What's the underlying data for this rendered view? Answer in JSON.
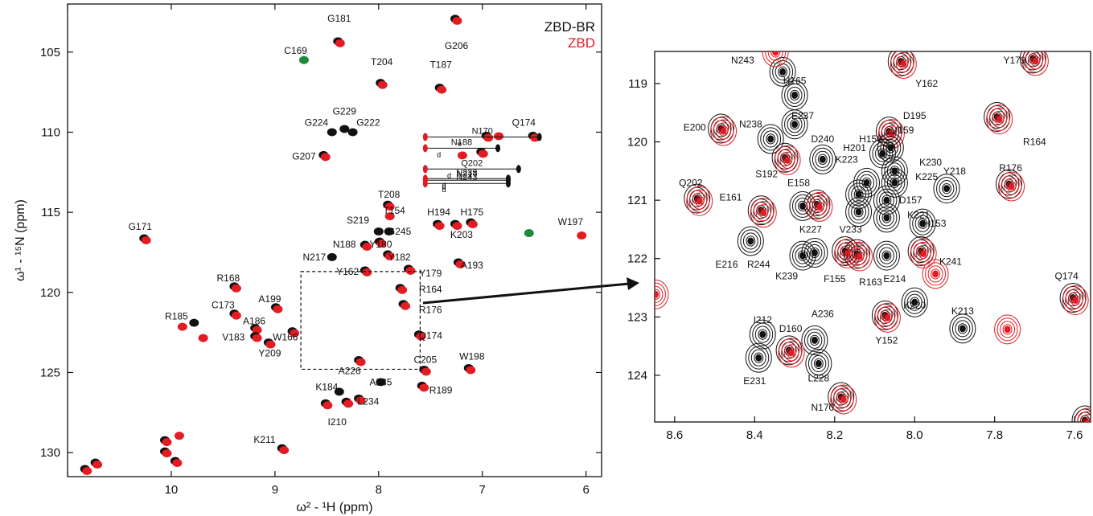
{
  "chart_data": [
    {
      "type": "scatter",
      "xlabel": "ω² - ¹H (ppm)",
      "ylabel": "ω¹ - ¹⁵N (ppm)",
      "x_reversed": true,
      "y_reversed": true,
      "xlim": [
        11.0,
        5.85
      ],
      "ylim": [
        102.0,
        131.5
      ],
      "xticks": [
        11,
        10,
        9,
        8,
        7,
        6
      ],
      "xtick_labels": [
        "",
        "10",
        "9",
        "8",
        "7",
        "6"
      ],
      "yticks": [
        105,
        110,
        115,
        120,
        125,
        130
      ],
      "ytick_labels": [
        "105",
        "110",
        "115",
        "120",
        "125",
        "130"
      ],
      "legend": [
        {
          "name": "ZBD-BR",
          "color": "#111111"
        },
        {
          "name": "ZBD",
          "color": "#e31b23"
        }
      ],
      "zoom_box": {
        "x": [
          8.75,
          7.6
        ],
        "y": [
          118.7,
          124.8
        ]
      },
      "colors": {
        "black": "#111111",
        "red": "#e31b23",
        "green": "#1d8a3c"
      },
      "peaks": [
        {
          "label": "G206",
          "x": 7.25,
          "y": 103.0,
          "series": "both",
          "lx": 7.25,
          "ly": 104.6
        },
        {
          "label": "G181",
          "x": 8.38,
          "y": 104.4,
          "series": "both",
          "lx": 8.38,
          "ly": 102.9
        },
        {
          "label": "C169",
          "x": 8.72,
          "y": 105.5,
          "series": "green",
          "lx": 8.8,
          "ly": 104.9
        },
        {
          "label": "T204",
          "x": 7.97,
          "y": 107.0,
          "series": "both",
          "lx": 7.97,
          "ly": 105.6
        },
        {
          "label": "T187",
          "x": 7.4,
          "y": 107.3,
          "series": "both",
          "lx": 7.4,
          "ly": 105.8
        },
        {
          "label": "G229",
          "x": 8.33,
          "y": 109.8,
          "series": "black",
          "lx": 8.33,
          "ly": 108.7
        },
        {
          "label": "G224",
          "x": 8.45,
          "y": 110.0,
          "series": "black",
          "lx": 8.6,
          "ly": 109.4
        },
        {
          "label": "G222",
          "x": 8.25,
          "y": 110.0,
          "series": "black",
          "lx": 8.1,
          "ly": 109.4
        },
        {
          "label": "G207",
          "x": 8.52,
          "y": 111.5,
          "series": "both",
          "lx": 8.72,
          "ly": 111.5
        },
        {
          "label": "Q174",
          "x": 6.5,
          "y": 110.3,
          "series": "both",
          "lx": 6.6,
          "ly": 109.4
        },
        {
          "label": "T208",
          "x": 7.9,
          "y": 114.6,
          "series": "both",
          "lx": 7.9,
          "ly": 113.9
        },
        {
          "label": "T154",
          "x": 7.9,
          "y": 115.2,
          "series": "red",
          "lx": 7.85,
          "ly": 114.9
        },
        {
          "label": "S219",
          "x": 8.0,
          "y": 116.2,
          "series": "black",
          "lx": 8.2,
          "ly": 115.5
        },
        {
          "label": "G245",
          "x": 7.9,
          "y": 116.2,
          "series": "black",
          "lx": 7.8,
          "ly": 116.2
        },
        {
          "label": "H194",
          "x": 7.42,
          "y": 115.8,
          "series": "both",
          "lx": 7.42,
          "ly": 115.0
        },
        {
          "label": "H175",
          "x": 7.1,
          "y": 115.7,
          "series": "both",
          "lx": 7.1,
          "ly": 115.0
        },
        {
          "label": "K203",
          "x": 7.25,
          "y": 115.8,
          "series": "both",
          "lx": 7.2,
          "ly": 116.4
        },
        {
          "label": "W197",
          "x": 6.05,
          "y": 116.4,
          "series": "red",
          "lx": 6.15,
          "ly": 115.6
        },
        {
          "label": "G171",
          "x": 10.25,
          "y": 116.7,
          "series": "both",
          "lx": 10.3,
          "ly": 115.9
        },
        {
          "label": "N188",
          "x": 8.12,
          "y": 117.1,
          "series": "both",
          "lx": 8.33,
          "ly": 117.0
        },
        {
          "label": "Y180",
          "x": 7.98,
          "y": 116.9,
          "series": "both",
          "lx": 7.98,
          "ly": 117.0
        },
        {
          "label": "N217",
          "x": 8.45,
          "y": 117.8,
          "series": "black",
          "lx": 8.62,
          "ly": 117.8
        },
        {
          "label": "Y182",
          "x": 7.9,
          "y": 117.7,
          "series": "both",
          "lx": 7.8,
          "ly": 117.8
        },
        {
          "label": "Y162",
          "x": 8.12,
          "y": 118.7,
          "series": "both",
          "lx": 8.3,
          "ly": 118.7
        },
        {
          "label": "A193",
          "x": 7.22,
          "y": 118.2,
          "series": "both",
          "lx": 7.1,
          "ly": 118.3
        },
        {
          "label": "Y179",
          "x": 7.7,
          "y": 118.6,
          "series": "both",
          "lx": 7.5,
          "ly": 118.8
        },
        {
          "label": "R168",
          "x": 9.38,
          "y": 119.7,
          "series": "both",
          "lx": 9.45,
          "ly": 119.1
        },
        {
          "label": "R164",
          "x": 7.78,
          "y": 119.8,
          "series": "both",
          "lx": 7.5,
          "ly": 119.8
        },
        {
          "label": "A199",
          "x": 8.98,
          "y": 121.0,
          "series": "both",
          "lx": 9.05,
          "ly": 120.4
        },
        {
          "label": "C173",
          "x": 9.38,
          "y": 121.4,
          "series": "both",
          "lx": 9.5,
          "ly": 120.8
        },
        {
          "label": "R176",
          "x": 7.75,
          "y": 120.8,
          "series": "both",
          "lx": 7.5,
          "ly": 121.1
        },
        {
          "label": "R185",
          "x": 9.78,
          "y": 121.9,
          "series": "black",
          "lx": 9.95,
          "ly": 121.5
        },
        {
          "label": "A186",
          "x": 9.18,
          "y": 122.3,
          "series": "both",
          "lx": 9.2,
          "ly": 121.8
        },
        {
          "label": "V183",
          "x": 9.18,
          "y": 122.8,
          "series": "both",
          "lx": 9.4,
          "ly": 122.8
        },
        {
          "label": "W166",
          "x": 8.82,
          "y": 122.5,
          "series": "both",
          "lx": 8.9,
          "ly": 122.8
        },
        {
          "label": "Y209",
          "x": 9.05,
          "y": 123.2,
          "series": "both",
          "lx": 9.05,
          "ly": 123.8
        },
        {
          "label": "Q174",
          "x": 7.6,
          "y": 122.7,
          "series": "both",
          "lx": 7.5,
          "ly": 122.7
        },
        {
          "label": "A226",
          "x": 8.18,
          "y": 124.3,
          "series": "both",
          "lx": 8.28,
          "ly": 124.9
        },
        {
          "label": "C205",
          "x": 7.55,
          "y": 124.9,
          "series": "both",
          "lx": 7.55,
          "ly": 124.2
        },
        {
          "label": "W198",
          "x": 7.12,
          "y": 124.8,
          "series": "both",
          "lx": 7.1,
          "ly": 124.0
        },
        {
          "label": "A235",
          "x": 7.98,
          "y": 125.6,
          "series": "black",
          "lx": 7.98,
          "ly": 125.6
        },
        {
          "label": "R189",
          "x": 7.57,
          "y": 125.9,
          "series": "both",
          "lx": 7.4,
          "ly": 126.1
        },
        {
          "label": "K184",
          "x": 8.38,
          "y": 126.2,
          "series": "black",
          "lx": 8.5,
          "ly": 125.9
        },
        {
          "label": "L234",
          "x": 8.18,
          "y": 126.7,
          "series": "both",
          "lx": 8.1,
          "ly": 126.8
        },
        {
          "label": "I210",
          "x": 8.3,
          "y": 126.9,
          "series": "both",
          "lx": 8.4,
          "ly": 128.1
        },
        {
          "label": "K211",
          "x": 8.92,
          "y": 129.8,
          "series": "both",
          "lx": 9.1,
          "ly": 129.2
        }
      ],
      "unlabeled_peaks": [
        {
          "x": 10.72,
          "y": 130.7,
          "series": "both"
        },
        {
          "x": 10.82,
          "y": 131.1,
          "series": "both"
        },
        {
          "x": 10.05,
          "y": 130.0,
          "series": "both"
        },
        {
          "x": 9.95,
          "y": 130.6,
          "series": "both"
        },
        {
          "x": 10.05,
          "y": 129.3,
          "series": "both"
        },
        {
          "x": 9.93,
          "y": 128.9,
          "series": "red"
        },
        {
          "x": 8.5,
          "y": 127.0,
          "series": "both"
        },
        {
          "x": 9.9,
          "y": 122.1,
          "series": "red"
        },
        {
          "x": 9.7,
          "y": 122.8,
          "series": "red"
        },
        {
          "x": 6.95,
          "y": 110.3,
          "series": "both"
        },
        {
          "x": 6.85,
          "y": 110.2,
          "series": "red"
        },
        {
          "x": 7.0,
          "y": 111.3,
          "series": "both"
        },
        {
          "x": 7.2,
          "y": 111.4,
          "series": "red"
        },
        {
          "x": 6.55,
          "y": 116.3,
          "series": "green"
        }
      ],
      "amide_pairs": [
        {
          "label": "N170",
          "x1": 7.55,
          "x2": 6.45,
          "y": 110.3,
          "mark": "e"
        },
        {
          "label": "N188",
          "x1": 7.55,
          "x2": 6.85,
          "y": 111.0,
          "mark": "d"
        },
        {
          "label": "Q202",
          "x1": 7.55,
          "x2": 6.65,
          "y": 112.3,
          "mark": "d"
        },
        {
          "label": "N238",
          "x1": 7.55,
          "x2": 6.75,
          "y": 112.9,
          "mark": "d"
        },
        {
          "label": "N217",
          "x1": 7.55,
          "x2": 6.75,
          "y": 113.0,
          "mark": "d"
        },
        {
          "label": "N243",
          "x1": 7.55,
          "x2": 6.75,
          "y": 113.2,
          "mark": "d"
        }
      ]
    },
    {
      "type": "scatter",
      "xlabel": "",
      "ylabel": "",
      "x_reversed": true,
      "y_reversed": true,
      "xlim": [
        8.65,
        7.56
      ],
      "ylim": [
        118.45,
        124.8
      ],
      "xticks": [
        8.6,
        8.4,
        8.2,
        8.0,
        7.8,
        7.6
      ],
      "xtick_labels": [
        "8.6",
        "8.4",
        "8.2",
        "8.0",
        "7.8",
        "7.6"
      ],
      "yticks": [
        119,
        120,
        121,
        122,
        123,
        124
      ],
      "ytick_labels": [
        "119",
        "120",
        "121",
        "122",
        "123",
        "124"
      ],
      "peaks": [
        {
          "label": "N243",
          "x": 8.33,
          "y": 118.8,
          "series": "black",
          "lx": 8.43,
          "ly": 118.6
        },
        {
          "label": "H165",
          "x": 8.3,
          "y": 119.2,
          "series": "black",
          "lx": 8.3,
          "ly": 118.95
        },
        {
          "label": "Y162",
          "x": 8.03,
          "y": 118.65,
          "series": "both",
          "lx": 7.97,
          "ly": 119.0
        },
        {
          "label": "Y179",
          "x": 7.7,
          "y": 118.6,
          "series": "both",
          "lx": 7.75,
          "ly": 118.6
        },
        {
          "label": "E200",
          "x": 8.48,
          "y": 119.8,
          "series": "both",
          "lx": 8.55,
          "ly": 119.75
        },
        {
          "label": "E237",
          "x": 8.3,
          "y": 119.7,
          "series": "black",
          "lx": 8.28,
          "ly": 119.55
        },
        {
          "label": "N238",
          "x": 8.36,
          "y": 119.95,
          "series": "black",
          "lx": 8.41,
          "ly": 119.7
        },
        {
          "label": "D195",
          "x": 8.06,
          "y": 119.85,
          "series": "both",
          "lx": 8.0,
          "ly": 119.55
        },
        {
          "label": "R164",
          "x": 7.79,
          "y": 119.6,
          "series": "both",
          "lx": 7.7,
          "ly": 120.0
        },
        {
          "label": "D240",
          "x": 8.23,
          "y": 120.3,
          "series": "black",
          "lx": 8.23,
          "ly": 119.95
        },
        {
          "label": "S192",
          "x": 8.32,
          "y": 120.3,
          "series": "both",
          "lx": 8.37,
          "ly": 120.55
        },
        {
          "label": "H156",
          "x": 8.08,
          "y": 120.2,
          "series": "black",
          "lx": 8.11,
          "ly": 119.95
        },
        {
          "label": "V159",
          "x": 8.06,
          "y": 120.1,
          "series": "black",
          "lx": 8.03,
          "ly": 119.8
        },
        {
          "label": "H201",
          "x": 8.12,
          "y": 120.7,
          "series": "black",
          "lx": 8.15,
          "ly": 120.1
        },
        {
          "label": "K223",
          "x": 8.14,
          "y": 120.9,
          "series": "black",
          "lx": 8.17,
          "ly": 120.3
        },
        {
          "label": "K230",
          "x": 8.05,
          "y": 120.5,
          "series": "black",
          "lx": 7.96,
          "ly": 120.35
        },
        {
          "label": "K225",
          "x": 8.05,
          "y": 120.7,
          "series": "black",
          "lx": 7.97,
          "ly": 120.6
        },
        {
          "label": "Y218",
          "x": 7.92,
          "y": 120.8,
          "series": "black",
          "lx": 7.9,
          "ly": 120.5
        },
        {
          "label": "R176",
          "x": 7.76,
          "y": 120.75,
          "series": "both",
          "lx": 7.76,
          "ly": 120.45
        },
        {
          "label": "Q202",
          "x": 8.54,
          "y": 121.0,
          "series": "both",
          "lx": 8.56,
          "ly": 120.7
        },
        {
          "label": "E158",
          "x": 8.28,
          "y": 121.1,
          "series": "black",
          "lx": 8.29,
          "ly": 120.7
        },
        {
          "label": "E161",
          "x": 8.38,
          "y": 121.2,
          "series": "both",
          "lx": 8.46,
          "ly": 120.95
        },
        {
          "label": "D157",
          "x": 8.07,
          "y": 121.0,
          "series": "black",
          "lx": 8.01,
          "ly": 121.0
        },
        {
          "label": "K221",
          "x": 8.07,
          "y": 121.3,
          "series": "black",
          "lx": 7.99,
          "ly": 121.25
        },
        {
          "label": "H153",
          "x": 7.98,
          "y": 121.4,
          "series": "black",
          "lx": 7.95,
          "ly": 121.4
        },
        {
          "label": "K227",
          "x": 8.24,
          "y": 121.1,
          "series": "both",
          "lx": 8.26,
          "ly": 121.5
        },
        {
          "label": "V233",
          "x": 8.14,
          "y": 121.2,
          "series": "black",
          "lx": 8.16,
          "ly": 121.5
        },
        {
          "label": "E216",
          "x": 8.41,
          "y": 121.7,
          "series": "black",
          "lx": 8.47,
          "ly": 122.1
        },
        {
          "label": "R244",
          "x": 8.28,
          "y": 121.95,
          "series": "black",
          "lx": 8.39,
          "ly": 122.1
        },
        {
          "label": "K239",
          "x": 8.25,
          "y": 121.9,
          "series": "black",
          "lx": 8.32,
          "ly": 122.3
        },
        {
          "label": "F155",
          "x": 8.17,
          "y": 121.9,
          "series": "both",
          "lx": 8.2,
          "ly": 122.35
        },
        {
          "label": "R163",
          "x": 8.14,
          "y": 121.95,
          "series": "both",
          "lx": 8.11,
          "ly": 122.4
        },
        {
          "label": "E214",
          "x": 8.07,
          "y": 121.95,
          "series": "black",
          "lx": 8.05,
          "ly": 122.35
        },
        {
          "label": "K241",
          "x": 7.98,
          "y": 121.9,
          "series": "both",
          "lx": 7.91,
          "ly": 122.05
        },
        {
          "label": "Q174",
          "x": 7.6,
          "y": 122.7,
          "series": "both",
          "lx": 7.62,
          "ly": 122.3
        },
        {
          "label": "K220",
          "x": 8.0,
          "y": 122.75,
          "series": "black",
          "lx": 8.0,
          "ly": 122.8
        },
        {
          "label": "K213",
          "x": 7.88,
          "y": 123.2,
          "series": "black",
          "lx": 7.88,
          "ly": 122.9
        },
        {
          "label": "I212",
          "x": 8.38,
          "y": 123.3,
          "series": "black",
          "lx": 8.38,
          "ly": 123.05
        },
        {
          "label": "A236",
          "x": 8.25,
          "y": 123.4,
          "series": "black",
          "lx": 8.23,
          "ly": 122.95
        },
        {
          "label": "D160",
          "x": 8.31,
          "y": 123.6,
          "series": "both",
          "lx": 8.31,
          "ly": 123.2
        },
        {
          "label": "Y152",
          "x": 8.07,
          "y": 123.0,
          "series": "both",
          "lx": 8.07,
          "ly": 123.4
        },
        {
          "label": "E231",
          "x": 8.39,
          "y": 123.7,
          "series": "black",
          "lx": 8.4,
          "ly": 124.1
        },
        {
          "label": "L228",
          "x": 8.24,
          "y": 123.8,
          "series": "black",
          "lx": 8.24,
          "ly": 124.05
        },
        {
          "label": "N170",
          "x": 8.18,
          "y": 124.4,
          "series": "both",
          "lx": 8.23,
          "ly": 124.55
        }
      ],
      "unlabeled_peaks": [
        {
          "x": 8.35,
          "y": 118.45,
          "series": "red"
        },
        {
          "x": 8.65,
          "y": 122.6,
          "series": "red"
        },
        {
          "x": 7.95,
          "y": 122.25,
          "series": "red"
        },
        {
          "x": 7.77,
          "y": 123.2,
          "series": "red"
        },
        {
          "x": 7.57,
          "y": 124.8,
          "series": "both"
        }
      ]
    }
  ]
}
